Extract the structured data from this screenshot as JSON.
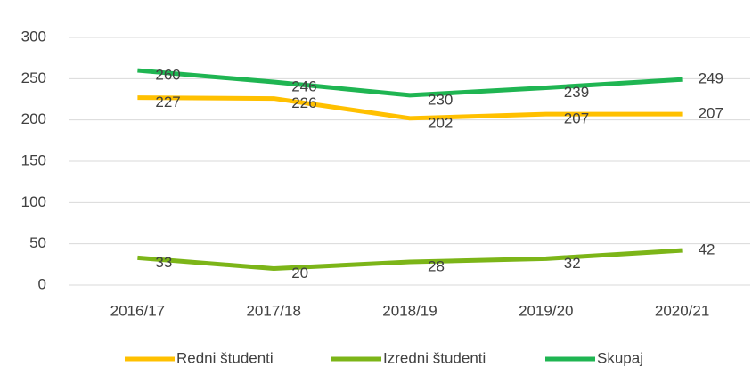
{
  "chart_data": {
    "type": "line",
    "categories": [
      "2016/17",
      "2017/18",
      "2018/19",
      "2019/20",
      "2020/21"
    ],
    "series": [
      {
        "name": "Redni študenti",
        "color": "#ffc000",
        "values": [
          227,
          226,
          202,
          207,
          207
        ]
      },
      {
        "name": "Izredni študenti",
        "color": "#7cb518",
        "values": [
          33,
          20,
          28,
          32,
          42
        ]
      },
      {
        "name": "Skupaj",
        "color": "#1fb552",
        "values": [
          260,
          246,
          230,
          239,
          249
        ]
      }
    ],
    "ylim": [
      0,
      300
    ],
    "yticks": [
      0,
      50,
      100,
      150,
      200,
      250,
      300
    ],
    "grid": true,
    "legend": "bottom"
  }
}
